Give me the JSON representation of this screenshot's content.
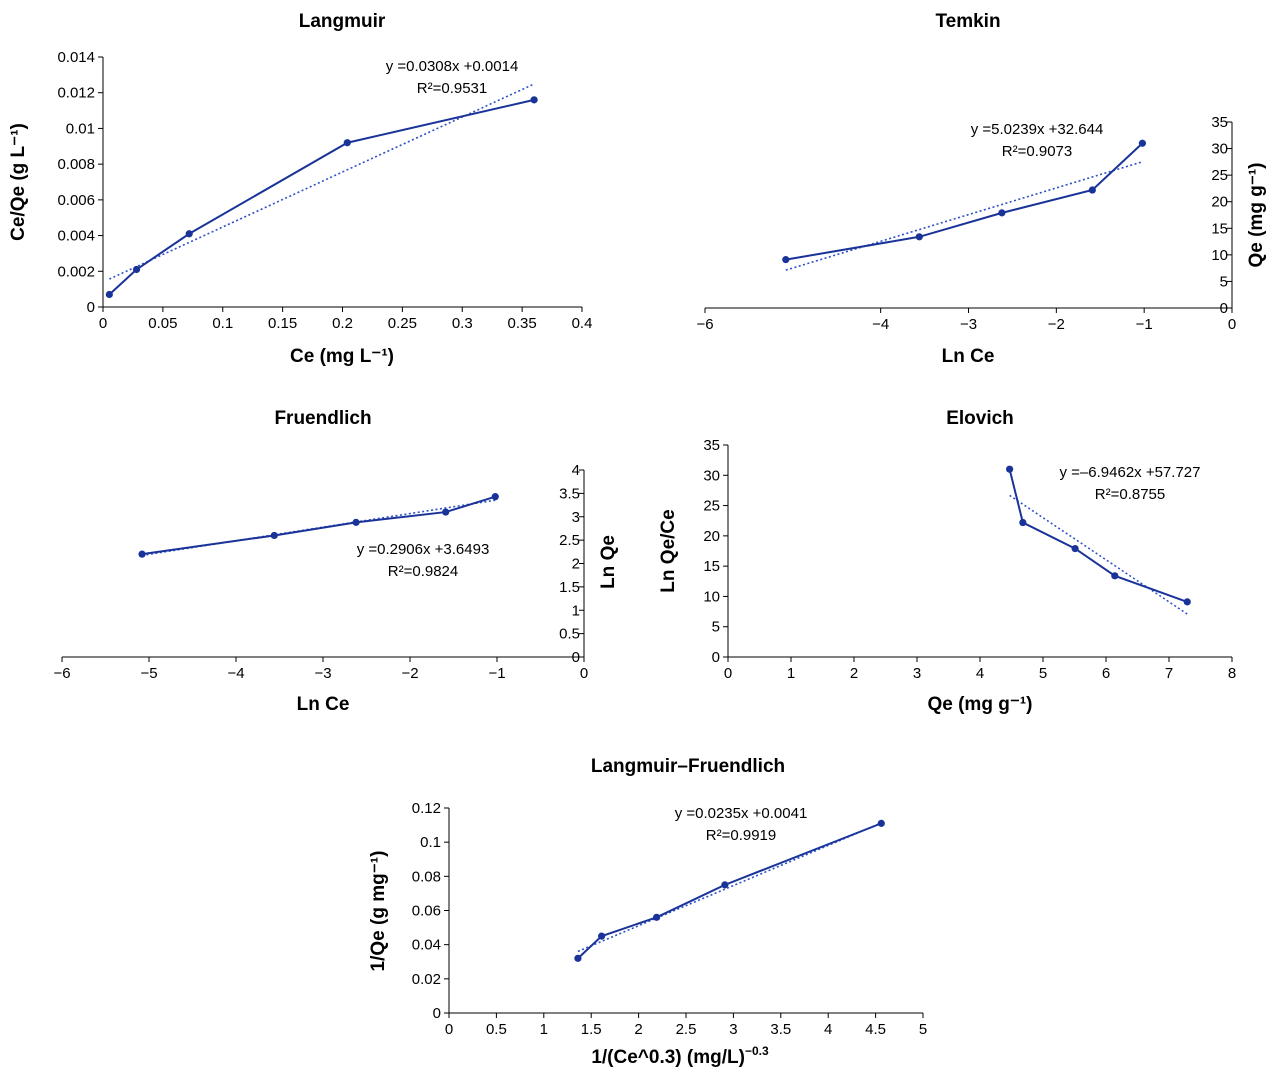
{
  "colors": {
    "series": "#1a3399",
    "trend": "#2d4fc8",
    "axis": "#000000"
  },
  "chart_data": [
    {
      "type": "line",
      "title": "Langmuir",
      "xlabel": "Ce (mg L⁻¹)",
      "ylabel": "Ce/Qe (g L⁻¹)",
      "xlim": [
        0,
        0.4
      ],
      "ylim": [
        0,
        0.014
      ],
      "x_ticks": [
        "0",
        "0.05",
        "0.1",
        "0.15",
        "0.2",
        "0.25",
        "0.3",
        "0.35",
        "0.4"
      ],
      "y_ticks": [
        "0",
        "0.002",
        "0.004",
        "0.006",
        "0.008",
        "0.01",
        "0.012",
        "0.014"
      ],
      "x": [
        0.0053,
        0.028,
        0.072,
        0.204,
        0.36
      ],
      "y": [
        0.0007,
        0.0021,
        0.0041,
        0.0092,
        0.0116
      ],
      "trendline": {
        "slope": 0.0308,
        "intercept": 0.0014
      },
      "equation": "y =0.0308x +0.0014",
      "r2_label": "R²=0.9531",
      "grid": false
    },
    {
      "type": "line",
      "title": "Temkin",
      "xlabel": "Ln Ce",
      "ylabel": "Qe (mg g⁻¹)",
      "xlim": [
        -6,
        0
      ],
      "ylim": [
        0,
        35
      ],
      "x_ticks": [
        "−6",
        "−4",
        "−3",
        "−2",
        "−1",
        "0"
      ],
      "y_ticks": [
        "0",
        "5",
        "10",
        "15",
        "20",
        "25",
        "30",
        "35"
      ],
      "x": [
        -5.08,
        -3.56,
        -2.62,
        -1.59,
        -1.02
      ],
      "y": [
        9.1,
        13.4,
        17.9,
        22.2,
        31.0
      ],
      "trendline": {
        "slope": 5.0239,
        "intercept": 32.644
      },
      "equation": "y =5.0239x +32.644",
      "r2_label": "R²=0.9073",
      "grid": false
    },
    {
      "type": "line",
      "title": "Fruendlich",
      "xlabel": "Ln Ce",
      "ylabel": "Ln Qe",
      "xlim": [
        -6,
        0
      ],
      "ylim": [
        0,
        4
      ],
      "x_ticks": [
        "−6",
        "−5",
        "−4",
        "−3",
        "−2",
        "−1",
        "0"
      ],
      "y_ticks": [
        "0",
        "0.5",
        "1",
        "1.5",
        "2",
        "2.5",
        "3",
        "3.5",
        "4"
      ],
      "x": [
        -5.08,
        -3.56,
        -2.62,
        -1.59,
        -1.02
      ],
      "y": [
        2.2,
        2.6,
        2.88,
        3.1,
        3.43
      ],
      "trendline": {
        "slope": 0.2906,
        "intercept": 3.6493
      },
      "equation": "y =0.2906x +3.6493",
      "r2_label": "R²=0.9824",
      "grid": false
    },
    {
      "type": "line",
      "title": "Elovich",
      "xlabel": "Qe (mg g⁻¹)",
      "ylabel": "Ln Qe/Ce",
      "xlim": [
        0,
        8
      ],
      "ylim": [
        0,
        35
      ],
      "x_ticks": [
        "0",
        "1",
        "2",
        "3",
        "4",
        "5",
        "6",
        "7",
        "8"
      ],
      "y_ticks": [
        "0",
        "5",
        "10",
        "15",
        "20",
        "25",
        "30",
        "35"
      ],
      "x": [
        4.47,
        4.68,
        5.51,
        6.14,
        7.29
      ],
      "y": [
        31.0,
        22.2,
        17.9,
        13.4,
        9.1
      ],
      "trendline": {
        "slope": -6.9462,
        "intercept": 57.727
      },
      "equation": "y =–6.9462x +57.727",
      "r2_label": "R²=0.8755",
      "grid": false
    },
    {
      "type": "line",
      "title": "Langmuir–Fruendlich",
      "xlabel": "1/(Ce^0.3) (mg/L)",
      "xlabel_sup": "−0.3",
      "ylabel": "1/Qe (g mg⁻¹)",
      "xlim": [
        0,
        5
      ],
      "ylim": [
        0,
        0.12
      ],
      "x_ticks": [
        "0",
        "0.5",
        "1",
        "1.5",
        "2",
        "2.5",
        "3",
        "3.5",
        "4",
        "4.5",
        "5"
      ],
      "y_ticks": [
        "0",
        "0.02",
        "0.04",
        "0.06",
        "0.08",
        "0.1",
        "0.12"
      ],
      "x": [
        1.36,
        1.61,
        2.19,
        2.91,
        4.56
      ],
      "y": [
        0.032,
        0.045,
        0.056,
        0.075,
        0.111
      ],
      "trendline": {
        "slope": 0.0235,
        "intercept": 0.0041
      },
      "equation": "y =0.0235x +0.0041",
      "r2_label": "R²=0.9919",
      "grid": false
    }
  ]
}
